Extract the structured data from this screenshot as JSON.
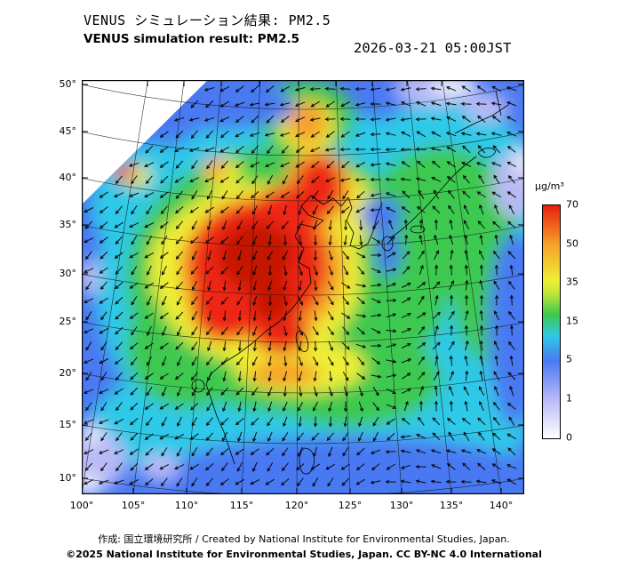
{
  "header": {
    "title_jp": "VENUS シミュレーション結果: PM2.5",
    "title_en": "VENUS simulation result: PM2.5",
    "timestamp": "2026-03-21 05:00JST"
  },
  "axes": {
    "lat": [
      "50°",
      "45°",
      "40°",
      "35°",
      "30°",
      "25°",
      "20°",
      "15°",
      "10°"
    ],
    "lon": [
      "100°",
      "105°",
      "110°",
      "115°",
      "120°",
      "125°",
      "130°",
      "135°",
      "140°"
    ]
  },
  "colorbar": {
    "unit": "μg/m³",
    "ticks": [
      "70",
      "50",
      "35",
      "15",
      "5",
      "1",
      "0"
    ],
    "palette": [
      "#ffffff",
      "#b9b9f7",
      "#4a79f2",
      "#2fc9e8",
      "#3cc94f",
      "#eeee35",
      "#f6a02a",
      "#e8200e"
    ]
  },
  "footer": {
    "credit": "作成:  国立環境研究所 / Created by National Institute for Environmental Studies, Japan.",
    "license": "©2025 National Institute for Environmental Studies, Japan. CC BY-NC 4.0 International"
  },
  "chart_data": {
    "type": "heatmap",
    "title": "VENUS simulation result: PM2.5",
    "title_jp": "VENUS シミュレーション結果: PM2.5",
    "valid_time": "2026-03-21 05:00JST",
    "unit": "μg/m³",
    "colorbar_ticks": [
      0,
      1,
      5,
      15,
      35,
      50,
      70
    ],
    "lon_ticks": [
      100,
      105,
      110,
      115,
      120,
      125,
      130,
      135,
      140
    ],
    "lat_ticks": [
      50,
      45,
      40,
      35,
      30,
      25,
      20,
      15,
      10
    ],
    "lon_range": [
      100,
      140
    ],
    "lat_range": [
      10,
      50
    ],
    "legend_position": "right",
    "grid": true,
    "overlay": "wind vector arrows",
    "observed_pattern": [
      {
        "region": "east-central China, approx. 110-121E / 23-36N",
        "pm25_ugm3": "> 70"
      },
      {
        "region": "ring surrounding the Chinese maximum and plume toward 122E/38N",
        "pm25_ugm3": "35-70"
      },
      {
        "region": "Korean Peninsula, Sea of Japan, Japan, southeast China band",
        "pm25_ugm3": "15-35"
      },
      {
        "region": "southern seas, Pacific side and domain margins",
        "pm25_ugm3": "1-15"
      },
      {
        "region": "north-western corner and scattered far-eastern edge patches",
        "pm25_ugm3": "0-1"
      }
    ],
    "wind": {
      "circulation": "cyclonic (counterclockwise) center near 130E, 37N",
      "general_flow": "westward flow over the southern sea areas"
    }
  }
}
